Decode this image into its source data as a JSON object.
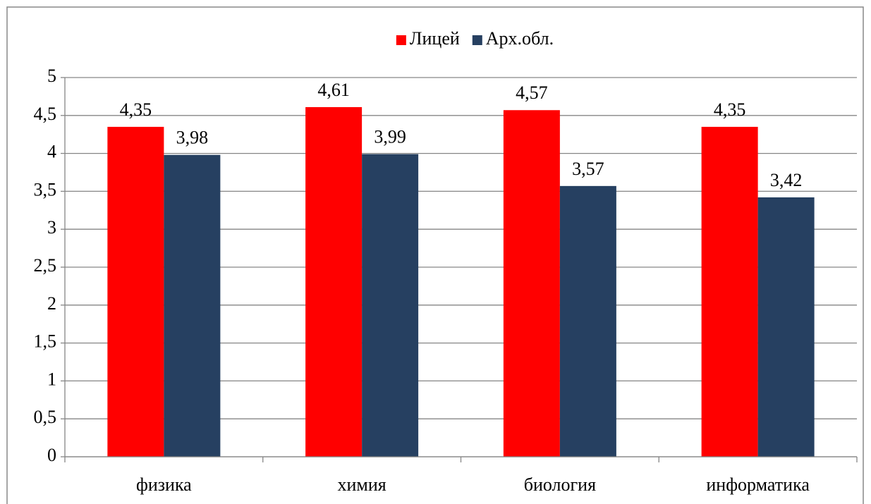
{
  "chart_data": {
    "type": "bar",
    "categories": [
      "физика",
      "химия",
      "биология",
      "информатика"
    ],
    "series": [
      {
        "name": "Лицей",
        "color": "#ff0000",
        "values": [
          4.35,
          4.61,
          4.57,
          4.35
        ],
        "value_labels": [
          "4,35",
          "4,61",
          "4,57",
          "4,35"
        ]
      },
      {
        "name": "Арх.обл.",
        "color": "#264061",
        "values": [
          3.98,
          3.99,
          3.57,
          3.42
        ],
        "value_labels": [
          "3,98",
          "3,99",
          "3,57",
          "3,42"
        ]
      }
    ],
    "ylim": [
      0,
      5
    ],
    "yticks": [
      0,
      {
        "value": 0.5,
        "label": "0,5"
      },
      1,
      {
        "value": 1.5,
        "label": "1,5"
      },
      2,
      {
        "value": 2.5,
        "label": "2,5"
      },
      3,
      {
        "value": 3.5,
        "label": "3,5"
      },
      4,
      {
        "value": 4.5,
        "label": "4,5"
      },
      5
    ],
    "grid": true,
    "legend": "top"
  }
}
